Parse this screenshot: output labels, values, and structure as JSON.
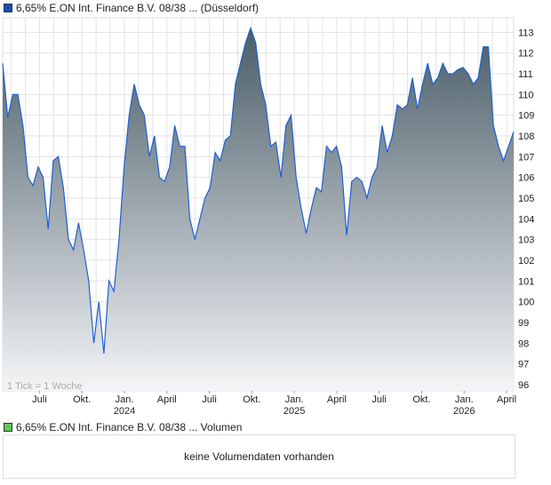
{
  "header": {
    "title": "6,65% E.ON Int. Finance B.V. 08/38 ... (Düsseldorf)"
  },
  "volume": {
    "title": "6,65% E.ON Int. Finance B.V. 08/38 ... Volumen",
    "empty_text": "keine Volumendaten vorhanden"
  },
  "colors": {
    "line": "#1f5fd0",
    "fill_top": "#4a5d68",
    "fill_bottom": "#f4f5f7",
    "price_legend": "#1a50b8",
    "volume_legend": "#5cc85c"
  },
  "chart_data": {
    "type": "area",
    "title": "6,65% E.ON Int. Finance B.V. 08/38 ... (Düsseldorf)",
    "note": "1 Tick = 1 Woche",
    "ylim": [
      95.7,
      113.7
    ],
    "yticks": [
      96,
      97,
      98,
      99,
      100,
      101,
      102,
      103,
      104,
      105,
      106,
      107,
      108,
      109,
      110,
      111,
      112,
      113
    ],
    "xlabels": [
      {
        "m": 2,
        "label": "Juli"
      },
      {
        "m": 5,
        "label": "Okt."
      },
      {
        "m": 8,
        "label": "Jan.",
        "year": "2024"
      },
      {
        "m": 11,
        "label": "April"
      },
      {
        "m": 14,
        "label": "Juli"
      },
      {
        "m": 17,
        "label": "Okt."
      },
      {
        "m": 20,
        "label": "Jan.",
        "year": "2025"
      },
      {
        "m": 23,
        "label": "April"
      },
      {
        "m": 26,
        "label": "Juli"
      },
      {
        "m": 29,
        "label": "Okt."
      },
      {
        "m": 32,
        "label": "Jan.",
        "year": "2026"
      },
      {
        "m": 35,
        "label": "April"
      }
    ],
    "months_start": -0.6,
    "months_end": 35.5,
    "grid": true,
    "values": [
      111.5,
      108.9,
      110.0,
      110.0,
      108.5,
      106.0,
      105.6,
      106.5,
      106.0,
      103.5,
      106.8,
      107.0,
      105.5,
      103.0,
      102.5,
      103.8,
      102.5,
      101.0,
      98.0,
      100.0,
      97.5,
      101.0,
      100.5,
      103.0,
      106.5,
      109.0,
      110.5,
      109.5,
      109.0,
      107.0,
      108.0,
      106.0,
      105.8,
      106.5,
      108.5,
      107.5,
      107.5,
      104.0,
      103.0,
      104.0,
      105.0,
      105.5,
      107.2,
      106.8,
      107.8,
      108.0,
      110.5,
      111.5,
      112.5,
      113.2,
      112.5,
      110.5,
      109.5,
      107.5,
      107.7,
      106.0,
      108.5,
      109.0,
      106.0,
      104.5,
      103.3,
      104.5,
      105.5,
      105.3,
      107.5,
      107.2,
      107.5,
      106.5,
      103.2,
      105.8,
      106.0,
      105.8,
      105.0,
      106.0,
      106.5,
      108.5,
      107.2,
      108.0,
      109.5,
      109.3,
      109.5,
      110.8,
      109.3,
      110.5,
      111.5,
      110.5,
      110.8,
      111.5,
      111.0,
      111.0,
      111.2,
      111.3,
      111.0,
      110.5,
      110.8,
      112.3,
      112.3,
      108.5,
      107.5,
      106.8,
      107.5,
      108.2
    ]
  }
}
